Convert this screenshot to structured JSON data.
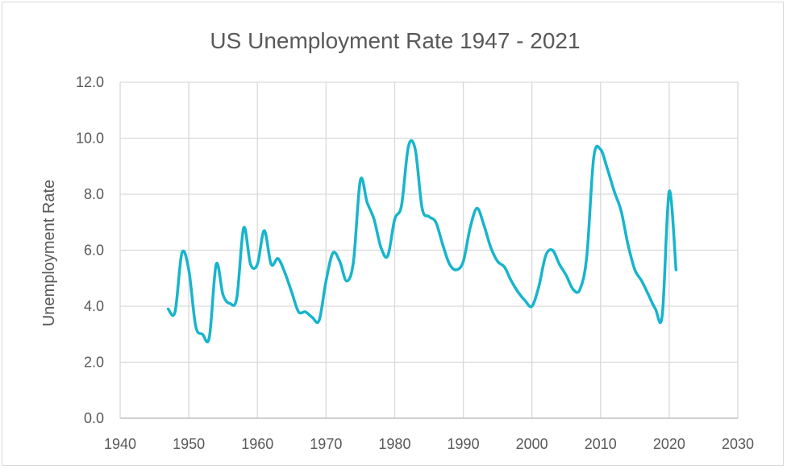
{
  "chart_data": {
    "type": "line",
    "title": "US Unemployment Rate 1947 - 2021",
    "xlabel": "",
    "ylabel": "Unemployment Rate",
    "xlim": [
      1940,
      2030
    ],
    "ylim": [
      0,
      12
    ],
    "xticks": [
      "1940",
      "1950",
      "1960",
      "1970",
      "1980",
      "1990",
      "2000",
      "2010",
      "2020",
      "2030"
    ],
    "yticks": [
      "0.0",
      "2.0",
      "4.0",
      "6.0",
      "8.0",
      "10.0",
      "12.0"
    ],
    "grid": true,
    "legend": "none",
    "series": [
      {
        "name": "Unemployment Rate",
        "color": "#17b5cc",
        "x": [
          1947,
          1948,
          1949,
          1950,
          1951,
          1952,
          1953,
          1954,
          1955,
          1956,
          1957,
          1958,
          1959,
          1960,
          1961,
          1962,
          1963,
          1964,
          1965,
          1966,
          1967,
          1968,
          1969,
          1970,
          1971,
          1972,
          1973,
          1974,
          1975,
          1976,
          1977,
          1978,
          1979,
          1980,
          1981,
          1982,
          1983,
          1984,
          1985,
          1986,
          1987,
          1988,
          1989,
          1990,
          1991,
          1992,
          1993,
          1994,
          1995,
          1996,
          1997,
          1998,
          1999,
          2000,
          2001,
          2002,
          2003,
          2004,
          2005,
          2006,
          2007,
          2008,
          2009,
          2010,
          2011,
          2012,
          2013,
          2014,
          2015,
          2016,
          2017,
          2018,
          2019,
          2020,
          2021
        ],
        "y": [
          3.9,
          3.8,
          5.9,
          5.3,
          3.3,
          3.0,
          2.9,
          5.5,
          4.4,
          4.1,
          4.3,
          6.8,
          5.5,
          5.5,
          6.7,
          5.5,
          5.7,
          5.2,
          4.5,
          3.8,
          3.8,
          3.6,
          3.5,
          4.9,
          5.9,
          5.6,
          4.9,
          5.6,
          8.5,
          7.7,
          7.1,
          6.1,
          5.8,
          7.1,
          7.6,
          9.7,
          9.6,
          7.5,
          7.2,
          7.0,
          6.2,
          5.5,
          5.3,
          5.6,
          6.8,
          7.5,
          6.9,
          6.1,
          5.6,
          5.4,
          4.9,
          4.5,
          4.2,
          4.0,
          4.7,
          5.8,
          6.0,
          5.5,
          5.1,
          4.6,
          4.6,
          5.8,
          9.3,
          9.6,
          8.9,
          8.1,
          7.4,
          6.2,
          5.3,
          4.9,
          4.4,
          3.9,
          3.7,
          8.1,
          5.3
        ]
      }
    ]
  }
}
